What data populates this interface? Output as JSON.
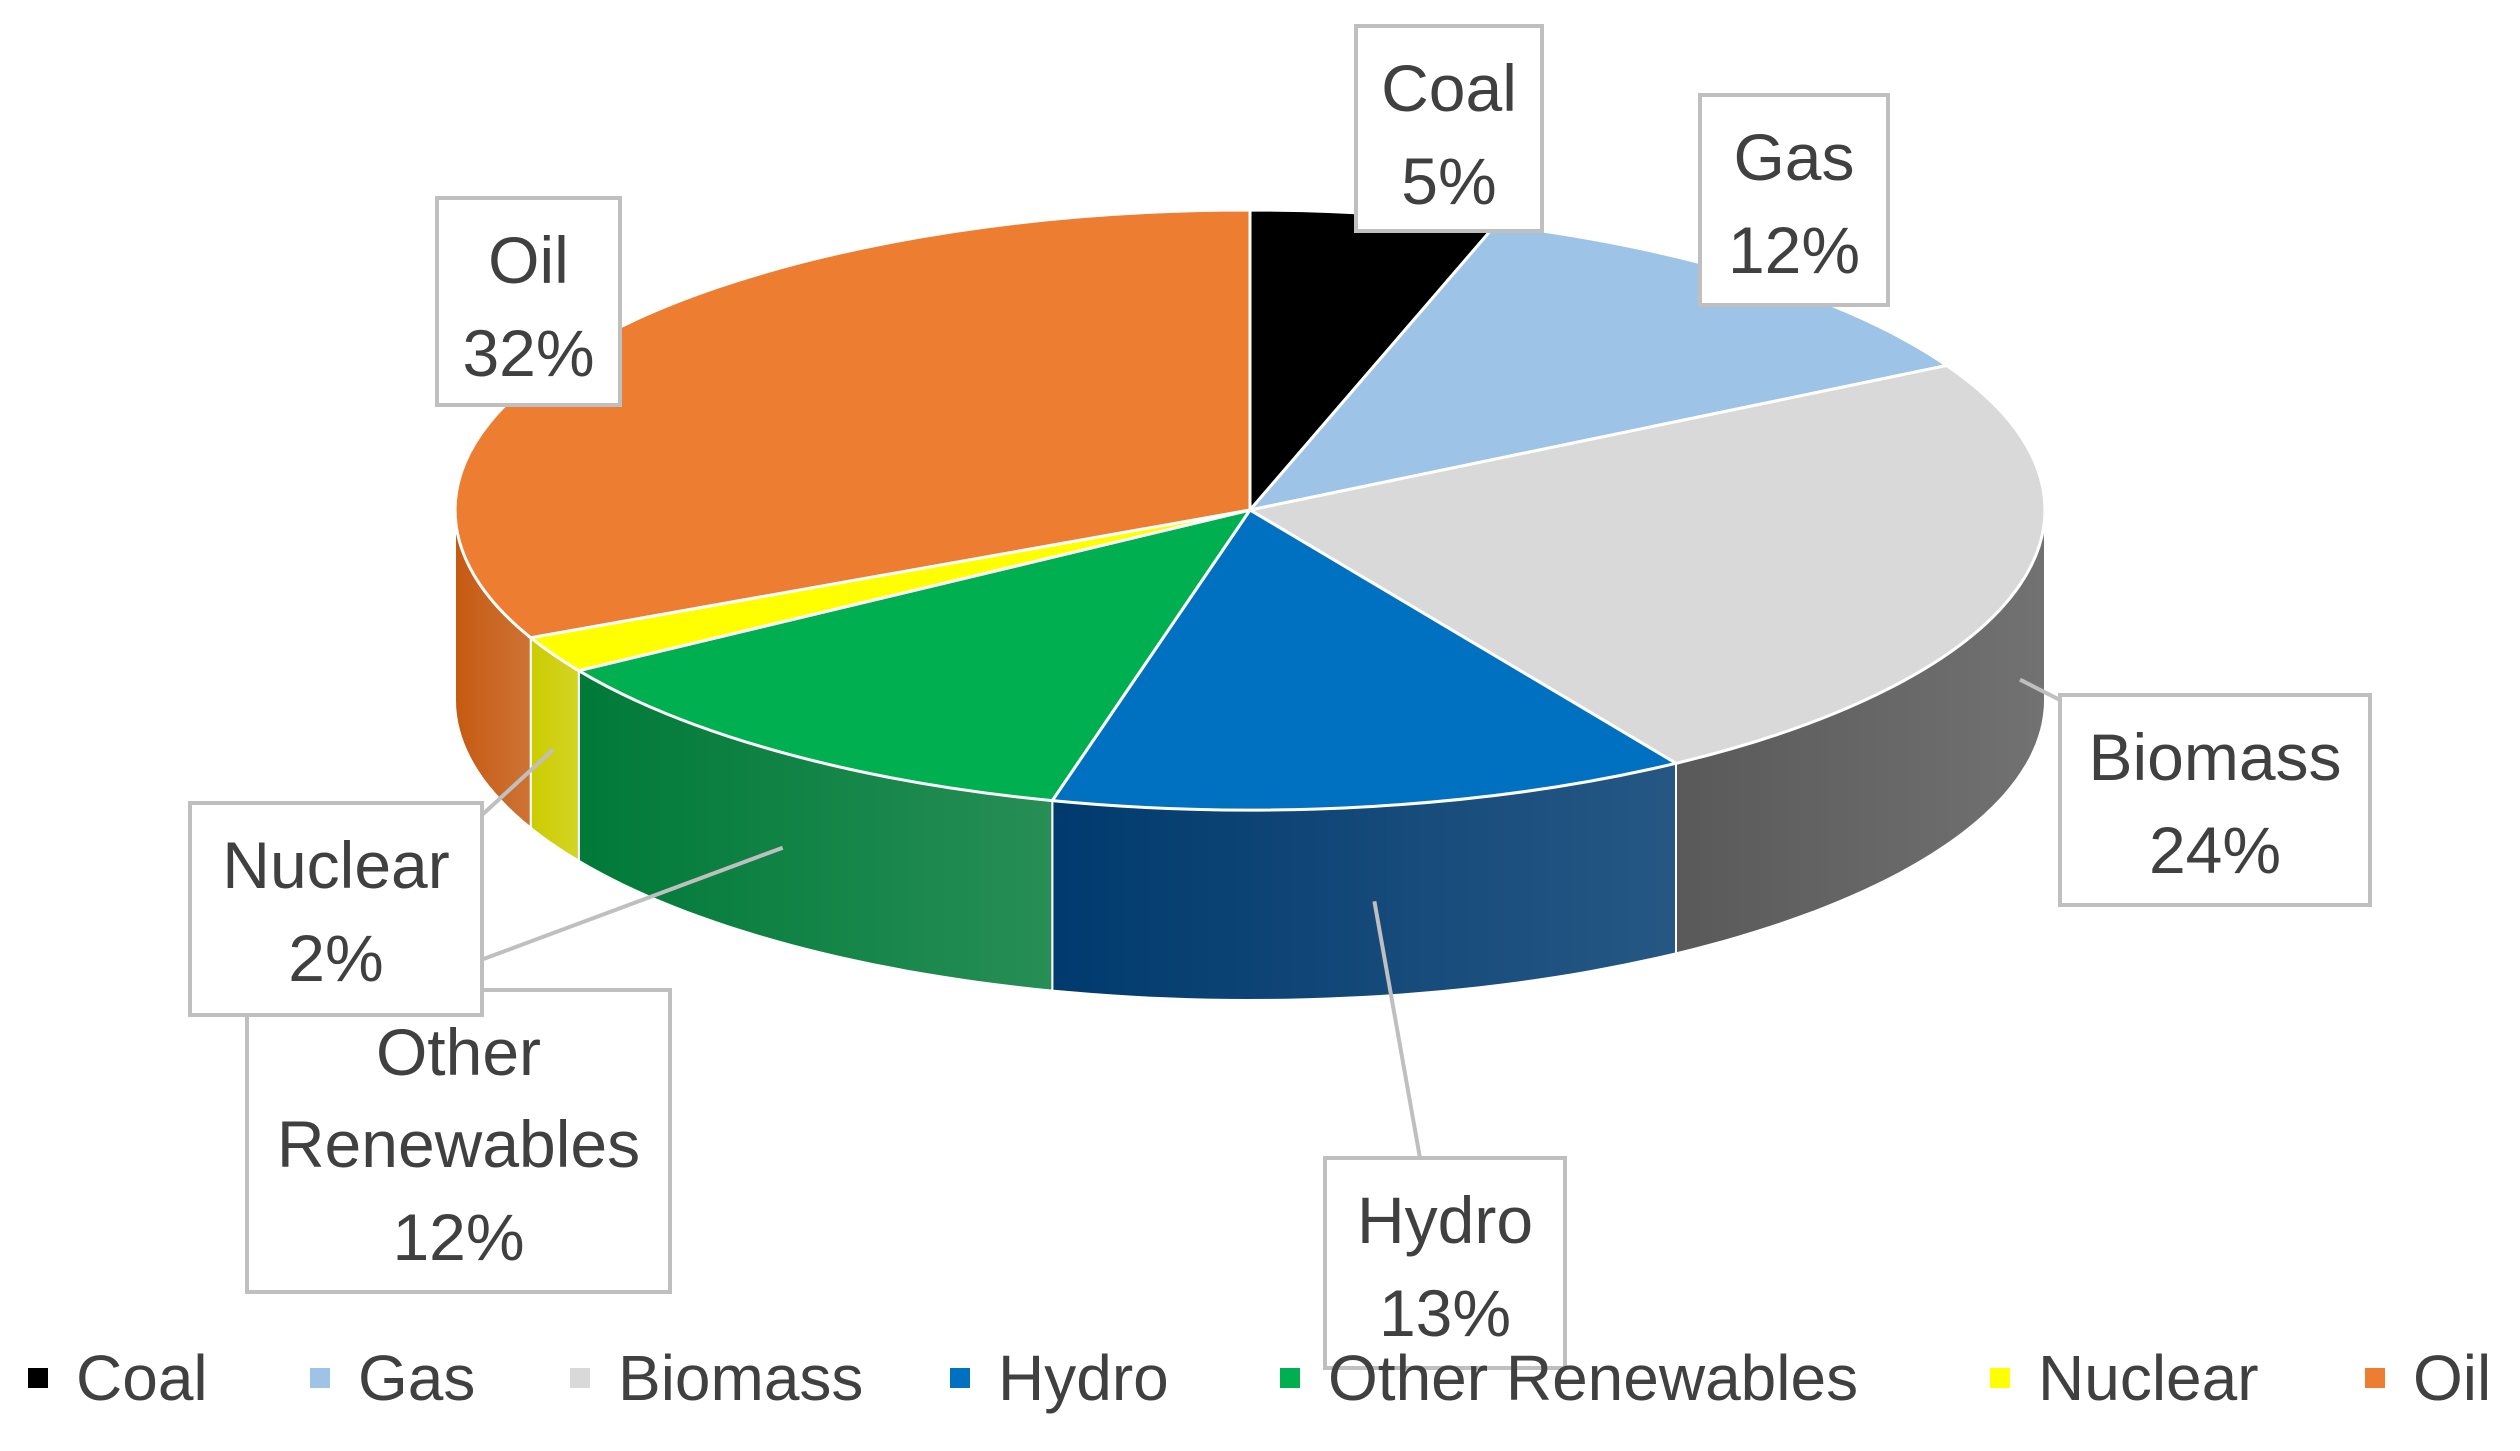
{
  "chart_data": {
    "type": "pie",
    "style": "3d",
    "title": "",
    "legend_position": "bottom",
    "slices": [
      {
        "name": "Coal",
        "value": 5,
        "label": "5%",
        "color": "#000000",
        "side_color": "#000000"
      },
      {
        "name": "Gas",
        "value": 12,
        "label": "12%",
        "color": "#9dc3e6",
        "side_color": "#6a8fb3"
      },
      {
        "name": "Biomass",
        "value": 24,
        "label": "24%",
        "color": "#d9d9d9",
        "side_color": "#595959"
      },
      {
        "name": "Hydro",
        "value": 13,
        "label": "13%",
        "color": "#0070c0",
        "side_color": "#003a6e"
      },
      {
        "name": "Other Renewables",
        "value": 12,
        "label": "12%",
        "color": "#00b050",
        "side_color": "#007a38"
      },
      {
        "name": "Nuclear",
        "value": 2,
        "label": "2%",
        "color": "#ffff00",
        "side_color": "#cccc00"
      },
      {
        "name": "Oil",
        "value": 32,
        "label": "32%",
        "color": "#ed7d31",
        "side_color": "#c55a11"
      }
    ]
  }
}
